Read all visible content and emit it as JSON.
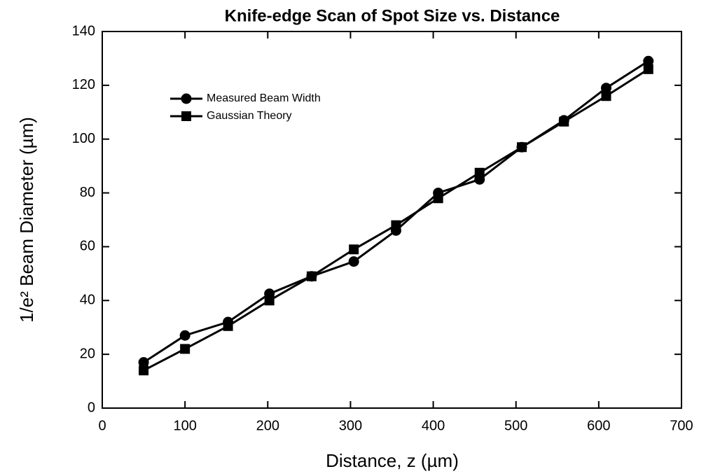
{
  "chart_data": {
    "type": "line",
    "title": "Knife-edge Scan of Spot Size vs. Distance",
    "xlabel": "Distance, z  (µm)",
    "ylabel": "1/e² Beam Diameter (µm)",
    "xlim": [
      0,
      700
    ],
    "xticks": [
      0,
      100,
      200,
      300,
      400,
      500,
      600,
      700
    ],
    "ylim": [
      0,
      140
    ],
    "yticks": [
      0,
      20,
      40,
      60,
      80,
      100,
      120,
      140
    ],
    "grid": false,
    "legend": "upper left",
    "x": [
      50,
      100,
      152,
      202,
      253,
      304,
      355,
      406,
      456,
      507,
      558,
      609,
      660
    ],
    "series": [
      {
        "name": "Measured Beam Width",
        "color": "#000000",
        "marker": "circle",
        "values": [
          17,
          27,
          32,
          42.5,
          49,
          54.5,
          66,
          80,
          85,
          97,
          107,
          119,
          129
        ]
      },
      {
        "name": "Gaussian Theory",
        "color": "#000000",
        "marker": "square",
        "values": [
          14,
          22,
          30.5,
          40,
          49,
          59,
          68,
          78,
          87.5,
          97,
          106.5,
          116,
          126
        ]
      }
    ]
  }
}
